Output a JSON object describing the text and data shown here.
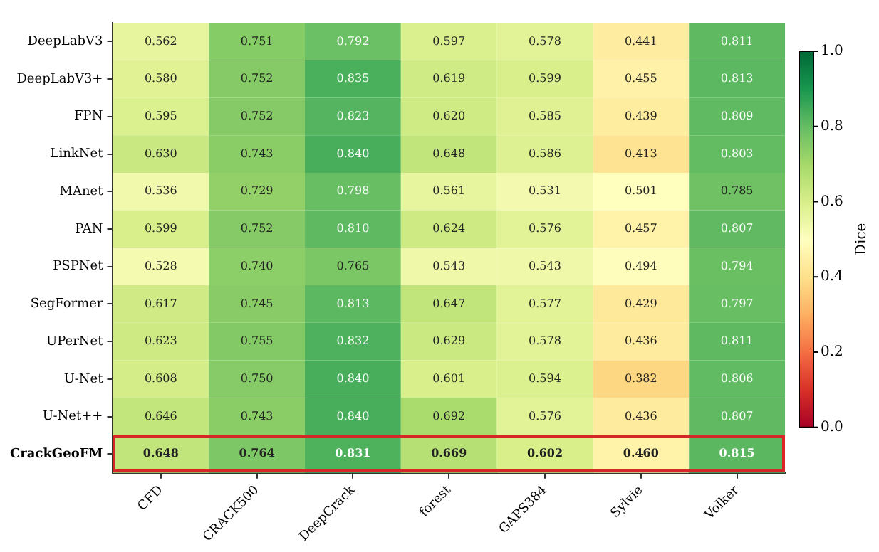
{
  "chart_data": {
    "type": "heatmap",
    "clabel": "Dice",
    "categories": [
      "CFD",
      "CRACK500",
      "DeepCrack",
      "forest",
      "GAPS384",
      "Sylvie",
      "Volker"
    ],
    "y_categories": [
      "DeepLabV3",
      "DeepLabV3+",
      "FPN",
      "LinkNet",
      "MAnet",
      "PAN",
      "PSPNet",
      "SegFormer",
      "UPerNet",
      "U-Net",
      "U-Net++",
      "CrackGeoFM"
    ],
    "cells": [
      [
        0.562,
        0.751,
        0.792,
        0.597,
        0.578,
        0.441,
        0.811
      ],
      [
        0.58,
        0.752,
        0.835,
        0.619,
        0.599,
        0.455,
        0.813
      ],
      [
        0.595,
        0.752,
        0.823,
        0.62,
        0.585,
        0.439,
        0.809
      ],
      [
        0.63,
        0.743,
        0.84,
        0.648,
        0.586,
        0.413,
        0.803
      ],
      [
        0.536,
        0.729,
        0.798,
        0.561,
        0.531,
        0.501,
        0.785
      ],
      [
        0.599,
        0.752,
        0.81,
        0.624,
        0.576,
        0.457,
        0.807
      ],
      [
        0.528,
        0.74,
        0.765,
        0.543,
        0.543,
        0.494,
        0.794
      ],
      [
        0.617,
        0.745,
        0.813,
        0.647,
        0.577,
        0.429,
        0.797
      ],
      [
        0.623,
        0.755,
        0.832,
        0.629,
        0.578,
        0.436,
        0.811
      ],
      [
        0.608,
        0.75,
        0.84,
        0.601,
        0.594,
        0.382,
        0.806
      ],
      [
        0.646,
        0.743,
        0.84,
        0.692,
        0.576,
        0.436,
        0.807
      ],
      [
        0.648,
        0.764,
        0.831,
        0.669,
        0.602,
        0.46,
        0.815
      ]
    ],
    "cell_labels": [
      [
        "0.562",
        "0.751",
        "0.792",
        "0.597",
        "0.578",
        "0.441",
        "0.811"
      ],
      [
        "0.580",
        "0.752",
        "0.835",
        "0.619",
        "0.599",
        "0.455",
        "0.813"
      ],
      [
        "0.595",
        "0.752",
        "0.823",
        "0.620",
        "0.585",
        "0.439",
        "0.809"
      ],
      [
        "0.630",
        "0.743",
        "0.840",
        "0.648",
        "0.586",
        "0.413",
        "0.803"
      ],
      [
        "0.536",
        "0.729",
        "0.798",
        "0.561",
        "0.531",
        "0.501",
        "0.785"
      ],
      [
        "0.599",
        "0.752",
        "0.810",
        "0.624",
        "0.576",
        "0.457",
        "0.807"
      ],
      [
        "0.528",
        "0.740",
        "0.765",
        "0.543",
        "0.543",
        "0.494",
        "0.794"
      ],
      [
        "0.617",
        "0.745",
        "0.813",
        "0.647",
        "0.577",
        "0.429",
        "0.797"
      ],
      [
        "0.623",
        "0.755",
        "0.832",
        "0.629",
        "0.578",
        "0.436",
        "0.811"
      ],
      [
        "0.608",
        "0.750",
        "0.840",
        "0.601",
        "0.594",
        "0.382",
        "0.806"
      ],
      [
        "0.646",
        "0.743",
        "0.840",
        "0.692",
        "0.576",
        "0.436",
        "0.807"
      ],
      [
        "0.648",
        "0.764",
        "0.831",
        "0.669",
        "0.602",
        "0.460",
        "0.815"
      ]
    ],
    "clim": [
      0,
      1
    ],
    "cticks": [
      {
        "value": 0,
        "label": "0.0"
      },
      0.2,
      0.4,
      0.6,
      0.8,
      {
        "value": 1,
        "label": "1.0"
      }
    ]
  }
}
